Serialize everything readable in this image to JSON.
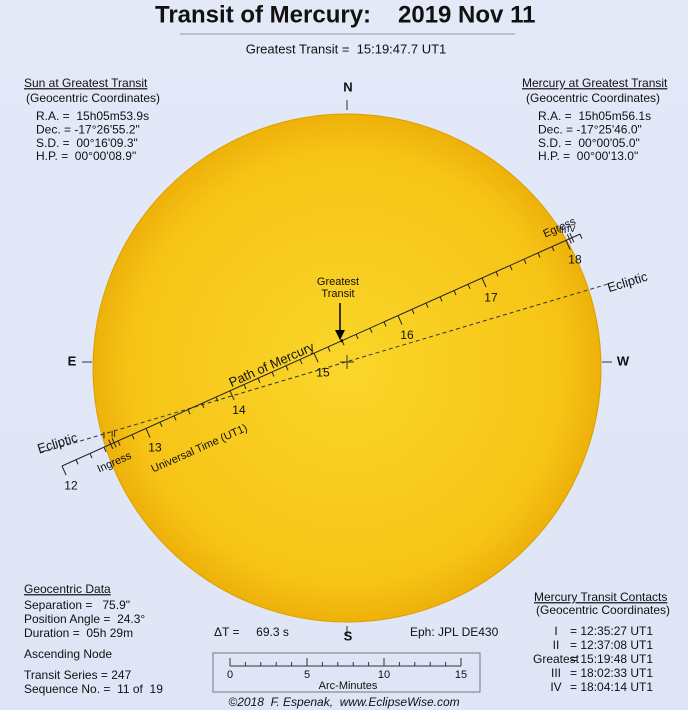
{
  "header": {
    "title": "Transit of Mercury:",
    "date": "2019 Nov 11",
    "greatest_transit": "Greatest Transit =  15:19:47.7 UT1"
  },
  "sun_panel": {
    "heading": "Sun at Greatest Transit",
    "subheading": "(Geocentric Coordinates)",
    "rows": [
      "R.A. =  15h05m53.9s",
      "Dec. = -17°26'55.2\"",
      "S.D. =  00°16'09.3\"",
      "H.P. =  00°00'08.9\""
    ]
  },
  "mercury_panel": {
    "heading": "Mercury at Greatest Transit",
    "subheading": "(Geocentric Coordinates)",
    "rows": [
      "R.A. =  15h05m56.1s",
      "Dec. = -17°25'46.0\"",
      "S.D. =  00°00'05.0\"",
      "H.P. =  00°00'13.0\""
    ]
  },
  "compass": {
    "north": "N",
    "south": "S",
    "east": "E",
    "west": "W"
  },
  "diagram": {
    "greatest_label": [
      "Greatest",
      "Transit"
    ],
    "path_label": "Path of Mercury",
    "time_label": "Universal Time (UT1)",
    "ecliptic_left": "Ecliptic",
    "ecliptic_right": "Ecliptic",
    "ingress": "Ingress",
    "egress": "Egress",
    "hour_labels": [
      "12",
      "13",
      "14",
      "15",
      "16",
      "17",
      "18"
    ]
  },
  "geocentric": {
    "heading": "Geocentric Data",
    "rows": [
      "Separation =   75.9\"",
      "Position Angle =  24.3°",
      "Duration =  05h 29m"
    ],
    "node": "Ascending Node",
    "series": "Transit Series = 247",
    "sequence": "Sequence No. =  11 of  19"
  },
  "delta_t": "ΔT =     69.3 s",
  "ephemeris": "Eph: JPL DE430",
  "scale": {
    "labels": [
      "0",
      "5",
      "10",
      "15"
    ],
    "unit": "Arc-Minutes"
  },
  "contacts": {
    "heading": "Mercury Transit Contacts",
    "subheading": "(Geocentric Coordinates)",
    "rows": [
      [
        "I",
        "= 12:35:27 UT1"
      ],
      [
        "II",
        "= 12:37:08 UT1"
      ],
      [
        "Greatest",
        "= 15:19:48 UT1"
      ],
      [
        "III",
        "= 18:02:33 UT1"
      ],
      [
        "IV",
        "= 18:04:14 UT1"
      ]
    ]
  },
  "credit": "©2018  F. Espenak,  www.EclipseWise.com"
}
